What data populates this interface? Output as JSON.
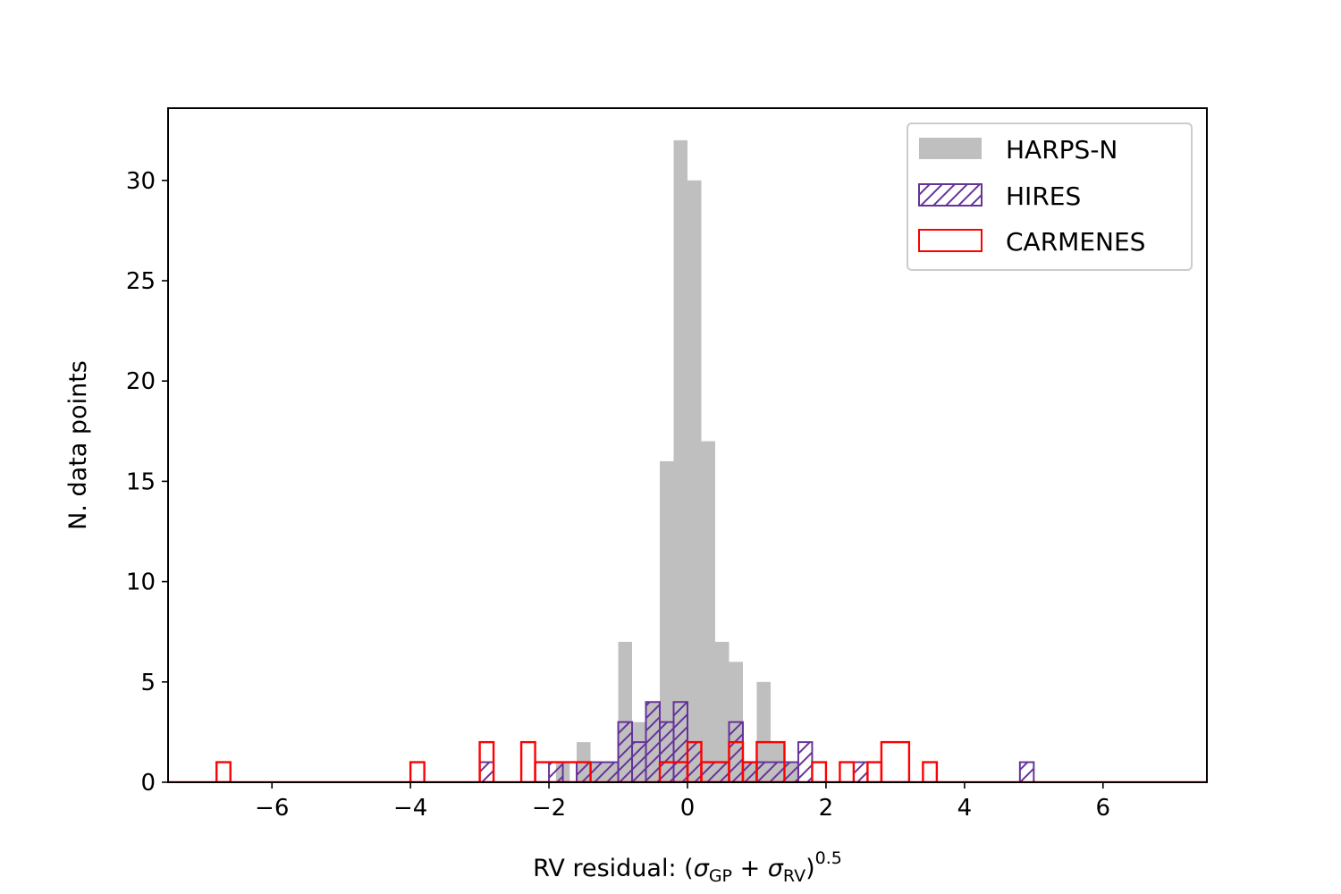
{
  "chart_data": {
    "type": "histogram",
    "xlabel": "RV residual: (σGP + σRV)0.5",
    "xlabel_parts": {
      "prefix": "RV residual: (",
      "sym1": "σ",
      "sub1": "GP",
      "plus": " + ",
      "sym2": "σ",
      "sub2": "RV",
      "close": ")",
      "sup": "0.5"
    },
    "ylabel": "N. data points",
    "xlim": [
      -7.5,
      7.5
    ],
    "ylim": [
      0,
      33.6
    ],
    "xticks": [
      -6,
      -4,
      -2,
      0,
      2,
      4,
      6
    ],
    "xtick_labels": [
      "−6",
      "−4",
      "−2",
      "0",
      "2",
      "4",
      "6"
    ],
    "yticks": [
      0,
      5,
      10,
      15,
      20,
      25,
      30
    ],
    "ytick_labels": [
      "0",
      "5",
      "10",
      "15",
      "20",
      "25",
      "30"
    ],
    "legend": {
      "placement": "top-right",
      "entries": [
        "HARPS-N",
        "HIRES",
        "CARMENES"
      ]
    },
    "series": [
      {
        "name": "HARPS-N",
        "style": "filled",
        "color": "#bfbfbf",
        "bins": [
          {
            "x0": -1.9,
            "x1": -1.7,
            "count": 1
          },
          {
            "x0": -1.6,
            "x1": -1.4,
            "count": 2
          },
          {
            "x0": -1.4,
            "x1": -1.2,
            "count": 1
          },
          {
            "x0": -1.2,
            "x1": -1.0,
            "count": 1
          },
          {
            "x0": -1.0,
            "x1": -0.8,
            "count": 7
          },
          {
            "x0": -0.8,
            "x1": -0.6,
            "count": 3
          },
          {
            "x0": -0.6,
            "x1": -0.4,
            "count": 4
          },
          {
            "x0": -0.4,
            "x1": -0.2,
            "count": 16
          },
          {
            "x0": -0.2,
            "x1": 0.0,
            "count": 32
          },
          {
            "x0": 0.0,
            "x1": 0.2,
            "count": 30
          },
          {
            "x0": 0.2,
            "x1": 0.4,
            "count": 17
          },
          {
            "x0": 0.4,
            "x1": 0.6,
            "count": 7
          },
          {
            "x0": 0.6,
            "x1": 0.8,
            "count": 6
          },
          {
            "x0": 0.8,
            "x1": 1.0,
            "count": 1
          },
          {
            "x0": 1.0,
            "x1": 1.2,
            "count": 5
          },
          {
            "x0": 1.2,
            "x1": 1.4,
            "count": 2
          },
          {
            "x0": 1.4,
            "x1": 1.6,
            "count": 1
          }
        ]
      },
      {
        "name": "HIRES",
        "style": "hatched",
        "color": "#663399",
        "bins": [
          {
            "x0": -3.0,
            "x1": -2.8,
            "count": 1
          },
          {
            "x0": -2.0,
            "x1": -1.8,
            "count": 1
          },
          {
            "x0": -1.6,
            "x1": -1.4,
            "count": 1
          },
          {
            "x0": -1.4,
            "x1": -1.0,
            "count": 1
          },
          {
            "x0": -1.0,
            "x1": -0.8,
            "count": 3
          },
          {
            "x0": -0.8,
            "x1": -0.6,
            "count": 2
          },
          {
            "x0": -0.6,
            "x1": -0.4,
            "count": 4
          },
          {
            "x0": -0.4,
            "x1": -0.2,
            "count": 3
          },
          {
            "x0": -0.2,
            "x1": 0.0,
            "count": 4
          },
          {
            "x0": 0.0,
            "x1": 0.2,
            "count": 2
          },
          {
            "x0": 0.2,
            "x1": 0.6,
            "count": 1
          },
          {
            "x0": 0.6,
            "x1": 0.8,
            "count": 3
          },
          {
            "x0": 0.8,
            "x1": 1.0,
            "count": 1
          },
          {
            "x0": 1.0,
            "x1": 1.6,
            "count": 1
          },
          {
            "x0": 1.6,
            "x1": 1.8,
            "count": 2
          },
          {
            "x0": 2.4,
            "x1": 2.6,
            "count": 1
          },
          {
            "x0": 4.8,
            "x1": 5.0,
            "count": 1
          }
        ]
      },
      {
        "name": "CARMENES",
        "style": "step",
        "color": "#ff0000",
        "bins": [
          {
            "x0": -6.8,
            "x1": -6.6,
            "count": 1
          },
          {
            "x0": -4.0,
            "x1": -3.8,
            "count": 1
          },
          {
            "x0": -3.0,
            "x1": -2.8,
            "count": 2
          },
          {
            "x0": -2.4,
            "x1": -2.2,
            "count": 2
          },
          {
            "x0": -2.2,
            "x1": -1.4,
            "count": 1
          },
          {
            "x0": -0.4,
            "x1": 0.0,
            "count": 1
          },
          {
            "x0": 0.0,
            "x1": 0.2,
            "count": 2
          },
          {
            "x0": 0.2,
            "x1": 0.6,
            "count": 1
          },
          {
            "x0": 0.6,
            "x1": 0.8,
            "count": 2
          },
          {
            "x0": 0.8,
            "x1": 1.0,
            "count": 1
          },
          {
            "x0": 1.0,
            "x1": 1.4,
            "count": 2
          },
          {
            "x0": 1.8,
            "x1": 2.0,
            "count": 1
          },
          {
            "x0": 2.2,
            "x1": 2.4,
            "count": 1
          },
          {
            "x0": 2.6,
            "x1": 2.8,
            "count": 1
          },
          {
            "x0": 2.8,
            "x1": 3.2,
            "count": 2
          },
          {
            "x0": 3.4,
            "x1": 3.6,
            "count": 1
          }
        ]
      }
    ]
  }
}
